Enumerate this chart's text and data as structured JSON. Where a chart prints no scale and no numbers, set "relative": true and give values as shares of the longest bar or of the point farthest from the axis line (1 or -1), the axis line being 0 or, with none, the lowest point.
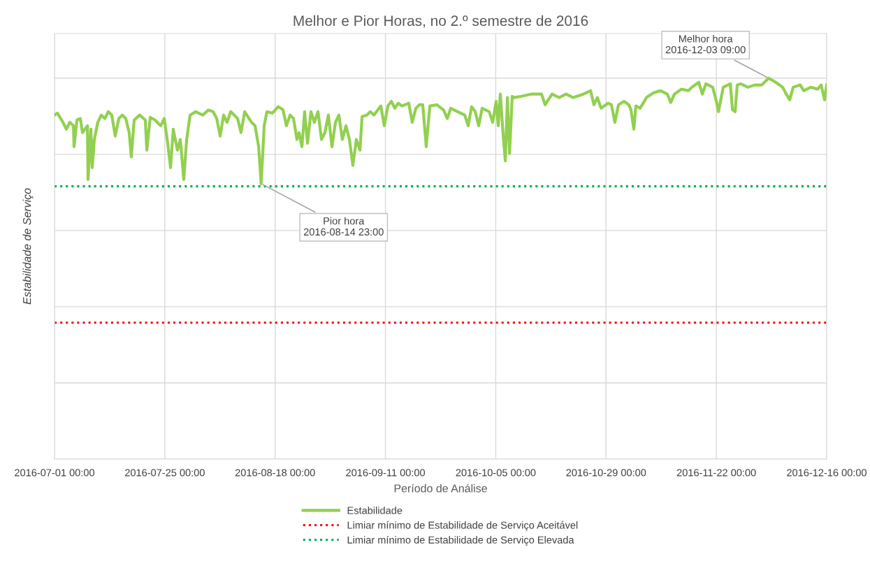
{
  "chart_data": {
    "type": "line",
    "title": "Melhor e Pior Horas, no 2.º semestre de 2016",
    "xlabel": "Período de Análise",
    "ylabel": "Estabilidade de Serviço",
    "relative": true,
    "tick_labels": "x",
    "grid": true,
    "legend": "bottom",
    "marker": "none",
    "line_style": "solid",
    "xlim": [
      "2016-07-01T00:00",
      "2016-12-16T00:00"
    ],
    "xticks": [
      {
        "value": "2016-07-01T00:00",
        "label": "2016-07-01 00:00"
      },
      {
        "value": "2016-07-25T00:00",
        "label": "2016-07-25 00:00"
      },
      {
        "value": "2016-08-18T00:00",
        "label": "2016-08-18 00:00"
      },
      {
        "value": "2016-09-11T00:00",
        "label": "2016-09-11 00:00"
      },
      {
        "value": "2016-10-05T00:00",
        "label": "2016-10-05 00:00"
      },
      {
        "value": "2016-10-29T00:00",
        "label": "2016-10-29 00:00"
      },
      {
        "value": "2016-11-22T00:00",
        "label": "2016-11-22 00:00"
      },
      {
        "value": "2016-12-16T00:00",
        "label": "2016-12-16 00:00"
      }
    ],
    "annotations": [
      {
        "text": "Pior hora\n2016-08-14 23:00",
        "x": "2016-08-14T23:00",
        "y": 0.723
      },
      {
        "text": "Melhor hora\n2016-12-03 09:00",
        "x": "2016-12-03T09:00",
        "y": 1.0
      }
    ],
    "ref_lines": [
      {
        "axis": "y",
        "value": 0.358,
        "label": "Limiar mínimo de Estabilidade de Serviço Aceitável",
        "color": "#ff0000",
        "line_style": "dotted"
      },
      {
        "axis": "y",
        "value": 0.716,
        "label": "Limiar mínimo de Estabilidade de Serviço Elevada",
        "color": "#00b050",
        "line_style": "dotted"
      }
    ],
    "series": [
      {
        "name": "Estabilidade",
        "color": "#92d050",
        "x": [
          "2016-07-01T00:00",
          "2016-07-01T15:00",
          "2016-07-02T20:00",
          "2016-07-03T14:00",
          "2016-07-04T08:00",
          "2016-07-05T03:00",
          "2016-07-05T06:00",
          "2016-07-05T21:00",
          "2016-07-06T15:00",
          "2016-07-07T02:00",
          "2016-07-08T04:00",
          "2016-07-08T07:00",
          "2016-07-08T22:00",
          "2016-07-09T05:00",
          "2016-07-09T16:00",
          "2016-07-10T10:00",
          "2016-07-11T04:00",
          "2016-07-11T23:00",
          "2016-07-12T17:00",
          "2016-07-13T11:00",
          "2016-07-14T05:00",
          "2016-07-15T00:00",
          "2016-07-15T18:00",
          "2016-07-16T12:00",
          "2016-07-17T06:00",
          "2016-07-17T17:00",
          "2016-07-18T08:00",
          "2016-07-19T13:00",
          "2016-07-20T18:00",
          "2016-07-21T02:00",
          "2016-07-21T20:00",
          "2016-07-22T21:00",
          "2016-07-24T03:00",
          "2016-07-24T21:00",
          "2016-07-25T15:00",
          "2016-07-26T06:00",
          "2016-07-26T20:00",
          "2016-07-27T18:00",
          "2016-07-28T09:00",
          "2016-07-29T03:00",
          "2016-07-29T18:00",
          "2016-07-30T12:00",
          "2016-07-31T17:00",
          "2016-08-02T06:00",
          "2016-08-03T11:00",
          "2016-08-04T12:00",
          "2016-08-05T07:00",
          "2016-08-06T01:00",
          "2016-08-06T19:00",
          "2016-08-07T13:00",
          "2016-08-08T08:00",
          "2016-08-09T20:00",
          "2016-08-10T14:00",
          "2016-08-11T09:00",
          "2016-08-12T21:00",
          "2016-08-13T15:00",
          "2016-08-14T10:00",
          "2016-08-14T23:00",
          "2016-08-15T15:00",
          "2016-08-16T05:00",
          "2016-08-17T10:00",
          "2016-08-18T16:00",
          "2016-08-19T17:00",
          "2016-08-20T11:00",
          "2016-08-21T06:00",
          "2016-08-22T00:00",
          "2016-08-22T18:00",
          "2016-08-23T05:00",
          "2016-08-23T20:00",
          "2016-08-24T10:00",
          "2016-08-25T01:00",
          "2016-08-25T19:00",
          "2016-08-26T13:00",
          "2016-08-27T08:00",
          "2016-08-28T02:00",
          "2016-08-28T20:00",
          "2016-08-29T14:00",
          "2016-08-30T09:00",
          "2016-08-31T03:00",
          "2016-08-31T21:00",
          "2016-09-01T15:00",
          "2016-09-02T10:00",
          "2016-09-03T04:00",
          "2016-09-03T22:00",
          "2016-09-04T16:00",
          "2016-09-05T11:00",
          "2016-09-05T22:00",
          "2016-09-06T23:00",
          "2016-09-07T17:00",
          "2016-09-08T12:00",
          "2016-09-10T00:00",
          "2016-09-10T18:00",
          "2016-09-11T13:00",
          "2016-09-12T07:00",
          "2016-09-13T01:00",
          "2016-09-13T19:00",
          "2016-09-14T14:00",
          "2016-09-16T02:00",
          "2016-09-16T20:00",
          "2016-09-17T15:00",
          "2016-09-18T09:00",
          "2016-09-19T03:00",
          "2016-09-19T21:00",
          "2016-09-20T16:00",
          "2016-09-22T04:00",
          "2016-09-23T16:00",
          "2016-09-24T11:00",
          "2016-09-25T05:00",
          "2016-09-26T17:00",
          "2016-09-28T06:00",
          "2016-09-29T00:00",
          "2016-09-29T18:00",
          "2016-09-30T13:00",
          "2016-10-01T07:00",
          "2016-10-02T01:00",
          "2016-10-03T14:00",
          "2016-10-04T08:00",
          "2016-10-05T02:00",
          "2016-10-05T13:00",
          "2016-10-06T00:00",
          "2016-10-06T15:00",
          "2016-10-07T02:00",
          "2016-10-07T13:00",
          "2016-10-08T00:00",
          "2016-10-08T14:00",
          "2016-10-09T01:00",
          "2016-10-10T10:00",
          "2016-10-12T17:00",
          "2016-10-14T23:00",
          "2016-10-15T18:00",
          "2016-10-17T06:00",
          "2016-10-18T19:00",
          "2016-10-20T07:00",
          "2016-10-21T20:00",
          "2016-10-24T02:00",
          "2016-10-25T15:00",
          "2016-10-26T09:00",
          "2016-10-27T03:00",
          "2016-10-27T22:00",
          "2016-10-29T10:00",
          "2016-10-30T04:00",
          "2016-10-30T22:00",
          "2016-10-31T17:00",
          "2016-11-01T22:00",
          "2016-11-02T23:00",
          "2016-11-03T10:00",
          "2016-11-04T01:00",
          "2016-11-04T12:00",
          "2016-11-05T10:00",
          "2016-11-06T19:00",
          "2016-11-08T07:00",
          "2016-11-09T20:00",
          "2016-11-11T08:00",
          "2016-11-12T02:00",
          "2016-11-12T21:00",
          "2016-11-14T09:00",
          "2016-11-15T22:00",
          "2016-11-16T16:00",
          "2016-11-18T04:00",
          "2016-11-18T23:00",
          "2016-11-19T17:00",
          "2016-11-21T05:00",
          "2016-11-22T00:00",
          "2016-11-22T11:00",
          "2016-11-23T12:00",
          "2016-11-25T01:00",
          "2016-11-25T12:00",
          "2016-11-26T02:00",
          "2016-11-26T13:00",
          "2016-11-27T07:00",
          "2016-11-28T20:00",
          "2016-11-30T08:00",
          "2016-12-01T21:00",
          "2016-12-03T09:00",
          "2016-12-04T22:00",
          "2016-12-06T10:00",
          "2016-12-07T05:00",
          "2016-12-07T23:00",
          "2016-12-08T17:00",
          "2016-12-10T06:00",
          "2016-12-11T00:00",
          "2016-12-12T12:00",
          "2016-12-14T01:00",
          "2016-12-14T19:00",
          "2016-12-15T13:00",
          "2016-12-16T00:00"
        ],
        "values": [
          0.903,
          0.908,
          0.884,
          0.866,
          0.884,
          0.875,
          0.82,
          0.89,
          0.894,
          0.857,
          0.875,
          0.734,
          0.866,
          0.765,
          0.839,
          0.884,
          0.903,
          0.894,
          0.912,
          0.903,
          0.848,
          0.894,
          0.903,
          0.894,
          0.857,
          0.793,
          0.89,
          0.903,
          0.89,
          0.811,
          0.897,
          0.89,
          0.875,
          0.894,
          0.829,
          0.765,
          0.866,
          0.811,
          0.839,
          0.734,
          0.839,
          0.903,
          0.912,
          0.903,
          0.916,
          0.912,
          0.894,
          0.848,
          0.903,
          0.884,
          0.912,
          0.894,
          0.857,
          0.912,
          0.884,
          0.875,
          0.82,
          0.723,
          0.875,
          0.912,
          0.908,
          0.925,
          0.917,
          0.875,
          0.903,
          0.894,
          0.839,
          0.857,
          0.82,
          0.912,
          0.829,
          0.912,
          0.884,
          0.912,
          0.839,
          0.857,
          0.903,
          0.82,
          0.884,
          0.903,
          0.839,
          0.875,
          0.839,
          0.771,
          0.839,
          0.811,
          0.899,
          0.903,
          0.912,
          0.903,
          0.927,
          0.875,
          0.927,
          0.939,
          0.921,
          0.934,
          0.927,
          0.934,
          0.884,
          0.921,
          0.93,
          0.93,
          0.82,
          0.927,
          0.93,
          0.916,
          0.894,
          0.921,
          0.912,
          0.903,
          0.875,
          0.925,
          0.912,
          0.875,
          0.921,
          0.912,
          0.884,
          0.939,
          0.875,
          0.958,
          0.848,
          0.783,
          0.949,
          0.802,
          0.952,
          0.949,
          0.952,
          0.958,
          0.958,
          0.93,
          0.958,
          0.949,
          0.958,
          0.949,
          0.958,
          0.967,
          0.93,
          0.949,
          0.921,
          0.934,
          0.93,
          0.884,
          0.93,
          0.939,
          0.93,
          0.917,
          0.866,
          0.927,
          0.921,
          0.949,
          0.961,
          0.967,
          0.958,
          0.936,
          0.958,
          0.971,
          0.967,
          0.976,
          0.989,
          0.958,
          0.985,
          0.976,
          0.939,
          0.912,
          0.976,
          0.985,
          0.917,
          0.912,
          0.982,
          0.985,
          0.976,
          0.982,
          0.982,
          1.0,
          0.989,
          0.976,
          0.958,
          0.943,
          0.976,
          0.982,
          0.967,
          0.976,
          0.971,
          0.982,
          0.943,
          0.982
        ]
      }
    ]
  }
}
